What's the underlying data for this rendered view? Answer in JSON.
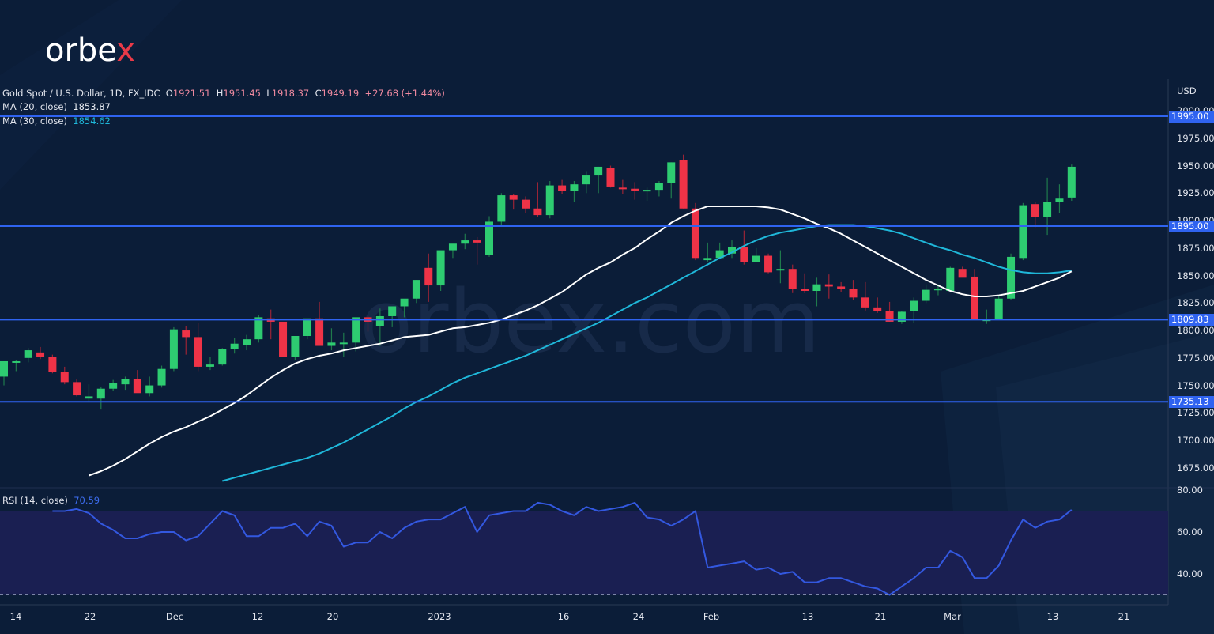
{
  "brand": {
    "logo_main": "orbe",
    "logo_accent": "x",
    "watermark": "orbex.com"
  },
  "legend": {
    "symbol": "Gold Spot / U.S. Dollar, 1D, FX_IDC",
    "open_label": "O",
    "open": "1921.51",
    "high_label": "H",
    "high": "1951.45",
    "low_label": "L",
    "low": "1918.37",
    "close_label": "C",
    "close": "1949.19",
    "change": "+27.68 (+1.44%)",
    "ma20_label": "MA (20, close)",
    "ma20_value": "1853.87",
    "ma30_label": "MA (30, close)",
    "ma30_value": "1854.62",
    "rsi_label": "RSI (14, close)",
    "rsi_value": "70.59"
  },
  "colors": {
    "background": "#0b1d38",
    "up": "#2ecc71",
    "down": "#ef3347",
    "ma20": "#ffffff",
    "ma30": "#1fb7d9",
    "level_line": "#2f63f0",
    "rsi_line": "#3358e0",
    "rsi_band": "#1a1f52"
  },
  "price_axis": {
    "currency": "USD",
    "ticks": [
      "2000.00",
      "1975.00",
      "1950.00",
      "1925.00",
      "1900.00",
      "1875.00",
      "1850.00",
      "1825.00",
      "1800.00",
      "1775.00",
      "1750.00",
      "1725.00",
      "1700.00",
      "1675.00"
    ],
    "levels": [
      "1995.00",
      "1895.00",
      "1809.83",
      "1735.13"
    ]
  },
  "rsi_axis": {
    "ticks": [
      "80.00",
      "60.00",
      "40.00"
    ]
  },
  "time_axis": {
    "labels": [
      "14",
      "22",
      "Dec",
      "12",
      "20",
      "2023",
      "16",
      "24",
      "Feb",
      "13",
      "21",
      "Mar",
      "13",
      "21"
    ]
  },
  "chart_data": {
    "type": "candlestick",
    "title": "Gold Spot / U.S. Dollar, 1D, FX_IDC",
    "ylabel": "USD",
    "ylim": [
      1660,
      2005
    ],
    "grid": false,
    "horizontal_levels": [
      1995.0,
      1895.0,
      1809.83,
      1735.13
    ],
    "x_tick_labels": [
      "14",
      "22",
      "Dec",
      "12",
      "20",
      "2023",
      "16",
      "24",
      "Feb",
      "13",
      "21",
      "Mar",
      "13",
      "21"
    ],
    "ohlc": [
      [
        1758,
        1772,
        1750,
        1772
      ],
      [
        1772,
        1773,
        1763,
        1772
      ],
      [
        1775,
        1784,
        1771,
        1782
      ],
      [
        1780,
        1785,
        1774,
        1776
      ],
      [
        1776,
        1778,
        1761,
        1762
      ],
      [
        1762,
        1767,
        1751,
        1753
      ],
      [
        1753,
        1756,
        1740,
        1741
      ],
      [
        1738,
        1751,
        1735,
        1740
      ],
      [
        1738,
        1749,
        1728,
        1747
      ],
      [
        1747,
        1755,
        1745,
        1752
      ],
      [
        1751,
        1758,
        1746,
        1756
      ],
      [
        1756,
        1764,
        1749,
        1743
      ],
      [
        1743,
        1758,
        1740,
        1750
      ],
      [
        1750,
        1768,
        1748,
        1765
      ],
      [
        1765,
        1803,
        1763,
        1801
      ],
      [
        1800,
        1804,
        1778,
        1794
      ],
      [
        1794,
        1807,
        1763,
        1767
      ],
      [
        1767,
        1776,
        1764,
        1769
      ],
      [
        1769,
        1784,
        1768,
        1783
      ],
      [
        1783,
        1793,
        1779,
        1788
      ],
      [
        1787,
        1796,
        1782,
        1792
      ],
      [
        1792,
        1814,
        1789,
        1812
      ],
      [
        1811,
        1819,
        1792,
        1808
      ],
      [
        1808,
        1807,
        1776,
        1776
      ],
      [
        1776,
        1795,
        1773,
        1795
      ],
      [
        1795,
        1810,
        1792,
        1811
      ],
      [
        1811,
        1826,
        1786,
        1786
      ],
      [
        1786,
        1802,
        1782,
        1789
      ],
      [
        1789,
        1798,
        1776,
        1789
      ],
      [
        1789,
        1796,
        1781,
        1812
      ],
      [
        1812,
        1813,
        1799,
        1808
      ],
      [
        1804,
        1820,
        1786,
        1813
      ],
      [
        1813,
        1822,
        1803,
        1822
      ],
      [
        1822,
        1826,
        1812,
        1829
      ],
      [
        1829,
        1846,
        1825,
        1846
      ],
      [
        1857,
        1870,
        1826,
        1841
      ],
      [
        1841,
        1872,
        1836,
        1873
      ],
      [
        1873,
        1878,
        1866,
        1879
      ],
      [
        1879,
        1888,
        1874,
        1882
      ],
      [
        1882,
        1885,
        1860,
        1880
      ],
      [
        1869,
        1904,
        1867,
        1899
      ],
      [
        1899,
        1925,
        1896,
        1923
      ],
      [
        1923,
        1924,
        1910,
        1919
      ],
      [
        1919,
        1922,
        1907,
        1911
      ],
      [
        1911,
        1935,
        1903,
        1905
      ],
      [
        1905,
        1936,
        1902,
        1932
      ],
      [
        1932,
        1937,
        1924,
        1927
      ],
      [
        1927,
        1936,
        1917,
        1933
      ],
      [
        1933,
        1945,
        1925,
        1941
      ],
      [
        1941,
        1949,
        1925,
        1949
      ],
      [
        1948,
        1950,
        1930,
        1931
      ],
      [
        1930,
        1937,
        1924,
        1929
      ],
      [
        1929,
        1935,
        1919,
        1927
      ],
      [
        1927,
        1930,
        1918,
        1928
      ],
      [
        1928,
        1936,
        1922,
        1934
      ],
      [
        1934,
        1953,
        1920,
        1953
      ],
      [
        1955,
        1960,
        1911,
        1911
      ],
      [
        1911,
        1916,
        1864,
        1866
      ],
      [
        1864,
        1880,
        1862,
        1866
      ],
      [
        1866,
        1880,
        1865,
        1873
      ],
      [
        1870,
        1882,
        1866,
        1876
      ],
      [
        1876,
        1891,
        1860,
        1862
      ],
      [
        1862,
        1875,
        1862,
        1868
      ],
      [
        1868,
        1870,
        1852,
        1853
      ],
      [
        1855,
        1873,
        1843,
        1856
      ],
      [
        1856,
        1860,
        1834,
        1838
      ],
      [
        1838,
        1852,
        1834,
        1836
      ],
      [
        1836,
        1848,
        1822,
        1842
      ],
      [
        1842,
        1851,
        1829,
        1840
      ],
      [
        1840,
        1844,
        1835,
        1838
      ],
      [
        1838,
        1846,
        1828,
        1830
      ],
      [
        1830,
        1844,
        1818,
        1821
      ],
      [
        1821,
        1830,
        1816,
        1818
      ],
      [
        1818,
        1826,
        1808,
        1808
      ],
      [
        1808,
        1818,
        1806,
        1817
      ],
      [
        1818,
        1830,
        1807,
        1827
      ],
      [
        1827,
        1842,
        1825,
        1837
      ],
      [
        1837,
        1842,
        1832,
        1838
      ],
      [
        1836,
        1858,
        1836,
        1857
      ],
      [
        1856,
        1858,
        1850,
        1848
      ],
      [
        1849,
        1856,
        1810,
        1810
      ],
      [
        1810,
        1819,
        1806,
        1810
      ],
      [
        1810,
        1832,
        1811,
        1829
      ],
      [
        1829,
        1870,
        1828,
        1867
      ],
      [
        1866,
        1916,
        1864,
        1914
      ],
      [
        1915,
        1917,
        1894,
        1903
      ],
      [
        1903,
        1939,
        1887,
        1917
      ],
      [
        1917,
        1933,
        1907,
        1920
      ],
      [
        1921,
        1951,
        1918,
        1949
      ]
    ],
    "series": [
      {
        "name": "MA (20, close)",
        "last": 1853.87,
        "values": [
          1668,
          1672,
          1677,
          1683,
          1690,
          1697,
          1703,
          1708,
          1712,
          1717,
          1722,
          1728,
          1734,
          1741,
          1749,
          1757,
          1764,
          1770,
          1774,
          1777,
          1779,
          1782,
          1784,
          1786,
          1788,
          1791,
          1794,
          1795,
          1796,
          1799,
          1802,
          1803,
          1805,
          1807,
          1810,
          1814,
          1818,
          1823,
          1829,
          1835,
          1843,
          1851,
          1857,
          1862,
          1869,
          1875,
          1883,
          1890,
          1898,
          1904,
          1909,
          1913,
          1913,
          1913,
          1913,
          1913,
          1912,
          1910,
          1906,
          1902,
          1897,
          1893,
          1888,
          1882,
          1876,
          1870,
          1864,
          1858,
          1852,
          1846,
          1841,
          1836,
          1833,
          1831,
          1831,
          1832,
          1834,
          1836,
          1840,
          1844,
          1848,
          1853.87
        ]
      },
      {
        "name": "MA (30, close)",
        "last": 1854.62,
        "values": [
          1663,
          1666,
          1669,
          1672,
          1675,
          1678,
          1681,
          1684,
          1688,
          1693,
          1698,
          1704,
          1710,
          1716,
          1722,
          1729,
          1735,
          1740,
          1746,
          1752,
          1757,
          1761,
          1765,
          1769,
          1773,
          1777,
          1782,
          1787,
          1792,
          1797,
          1802,
          1807,
          1813,
          1819,
          1825,
          1830,
          1836,
          1842,
          1848,
          1854,
          1860,
          1866,
          1871,
          1877,
          1882,
          1886,
          1889,
          1891,
          1893,
          1895,
          1896,
          1896,
          1896,
          1895,
          1893,
          1891,
          1888,
          1884,
          1880,
          1876,
          1873,
          1869,
          1866,
          1862,
          1858,
          1855,
          1853,
          1852,
          1852,
          1853,
          1854.62
        ]
      },
      {
        "name": "RSI (14, close)",
        "last": 70.59,
        "values": [
          70,
          70,
          71,
          69,
          64,
          61,
          57,
          57,
          59,
          60,
          60,
          56,
          58,
          64,
          70,
          68,
          58,
          58,
          62,
          62,
          64,
          58,
          65,
          63,
          53,
          55,
          55,
          60,
          57,
          62,
          65,
          66,
          66,
          69,
          72,
          60,
          68,
          69,
          70,
          70,
          74,
          73,
          70,
          68,
          72,
          70,
          71,
          72,
          74,
          67,
          66,
          63,
          66,
          70,
          43,
          44,
          45,
          46,
          42,
          43,
          40,
          41,
          36,
          36,
          38,
          38,
          36,
          34,
          33,
          30,
          34,
          38,
          43,
          43,
          51,
          48,
          38,
          38,
          44,
          56,
          66,
          62,
          65,
          66,
          70.59
        ],
        "overbought": 70,
        "oversold": 30,
        "ylim": [
          25,
          85
        ]
      }
    ]
  }
}
